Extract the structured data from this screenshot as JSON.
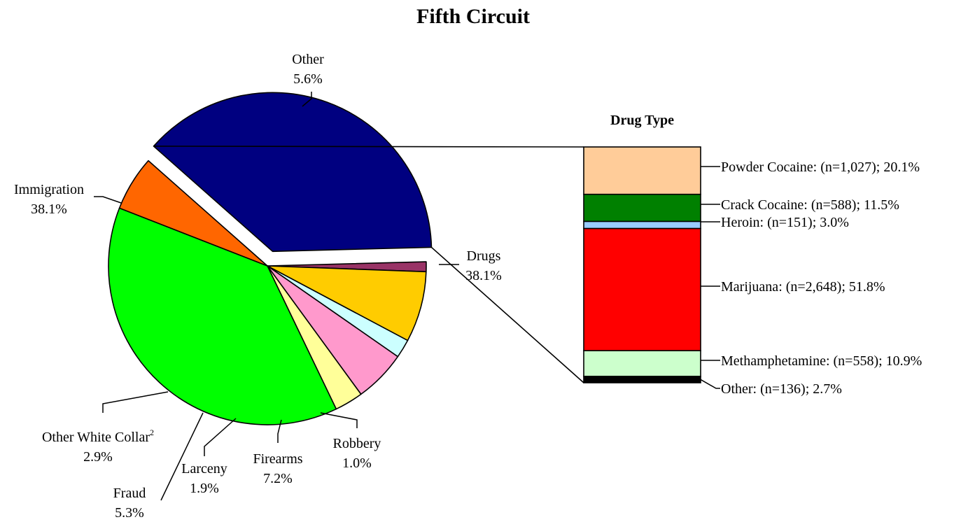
{
  "chart_data": [
    {
      "type": "pie",
      "title": "Fifth Circuit",
      "unit": "%",
      "slices": [
        {
          "label": "Drugs",
          "value": 38.1,
          "value_text": "38.1%",
          "color": "#000080",
          "exploded": true
        },
        {
          "label": "Robbery",
          "value": 1.0,
          "value_text": "1.0%",
          "color": "#993366"
        },
        {
          "label": "Firearms",
          "value": 7.2,
          "value_text": "7.2%",
          "color": "#FFCC00"
        },
        {
          "label": "Larceny",
          "value": 1.9,
          "value_text": "1.9%",
          "color": "#CCFFFF"
        },
        {
          "label": "Fraud",
          "value": 5.3,
          "value_text": "5.3%",
          "color": "#FF99CC"
        },
        {
          "label": "Other White Collar",
          "label_superscript": "2",
          "value": 2.9,
          "value_text": "2.9%",
          "color": "#FFFF99"
        },
        {
          "label": "Immigration",
          "value": 38.1,
          "value_text": "38.1%",
          "color": "#00FF00"
        },
        {
          "label": "Other",
          "value": 5.6,
          "value_text": "5.6%",
          "color": "#FF6600"
        }
      ]
    },
    {
      "type": "stacked-bar",
      "title": "Drug Type",
      "unit": "%",
      "segments": [
        {
          "label": "Powder Cocaine: (n=1,027); 20.1%",
          "category": "Powder Cocaine",
          "n": 1027,
          "value": 20.1,
          "color": "#FFCC99"
        },
        {
          "label": "Crack Cocaine: (n=588); 11.5%",
          "category": "Crack Cocaine",
          "n": 588,
          "value": 11.5,
          "color": "#008000"
        },
        {
          "label": "Heroin: (n=151); 3.0%",
          "category": "Heroin",
          "n": 151,
          "value": 3.0,
          "color": "#99CCFF"
        },
        {
          "label": "Marijuana: (n=2,648); 51.8%",
          "category": "Marijuana",
          "n": 2648,
          "value": 51.8,
          "color": "#FF0000"
        },
        {
          "label": "Methamphetamine: (n=558); 10.9%",
          "category": "Methamphetamine",
          "n": 558,
          "value": 10.9,
          "color": "#CCFFCC"
        },
        {
          "label": "Other: (n=136); 2.7%",
          "category": "Other",
          "n": 136,
          "value": 2.7,
          "color": "#000000"
        }
      ]
    }
  ]
}
